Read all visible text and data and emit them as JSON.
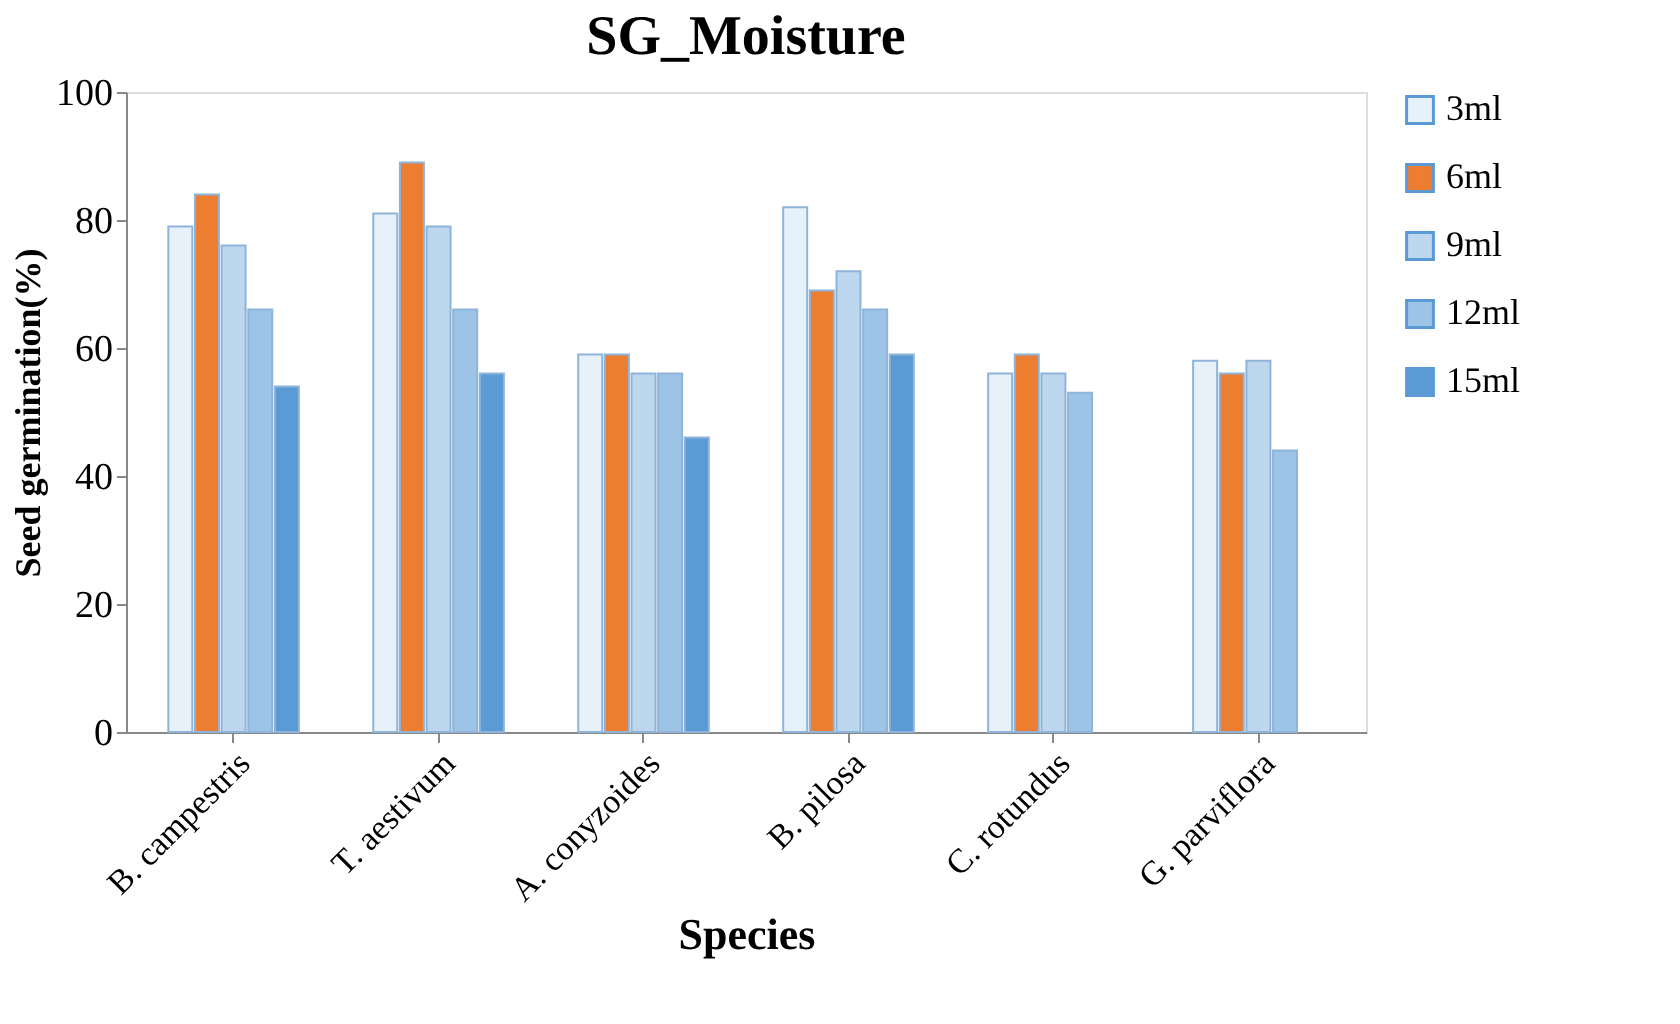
{
  "chart_data": {
    "type": "bar",
    "title": "SG_Moisture",
    "xlabel": "Species",
    "ylabel": "Seed germination(%)",
    "categories": [
      "B. campestris",
      "T. aestivum",
      "A. conyzoides",
      "B. pilosa",
      "C. rotundus",
      "G. parviflora"
    ],
    "series": [
      {
        "name": "3ml",
        "color": "#e6f1fa",
        "values": [
          79,
          81,
          59,
          82,
          56,
          58
        ]
      },
      {
        "name": "6ml",
        "color": "#ed7d31",
        "values": [
          84,
          89,
          59,
          69,
          59,
          56
        ]
      },
      {
        "name": "9ml",
        "color": "#bdd7ee",
        "values": [
          76,
          79,
          56,
          72,
          56,
          58
        ]
      },
      {
        "name": "12ml",
        "color": "#9dc3e6",
        "values": [
          66,
          66,
          56,
          66,
          53,
          44
        ]
      },
      {
        "name": "15ml",
        "color": "#5b9bd5",
        "values": [
          54,
          56,
          46,
          59,
          null,
          null
        ]
      }
    ],
    "ylim": [
      0,
      100
    ],
    "yticks": [
      0,
      20,
      40,
      60,
      80,
      100
    ],
    "grid": false,
    "legend": "top right"
  }
}
